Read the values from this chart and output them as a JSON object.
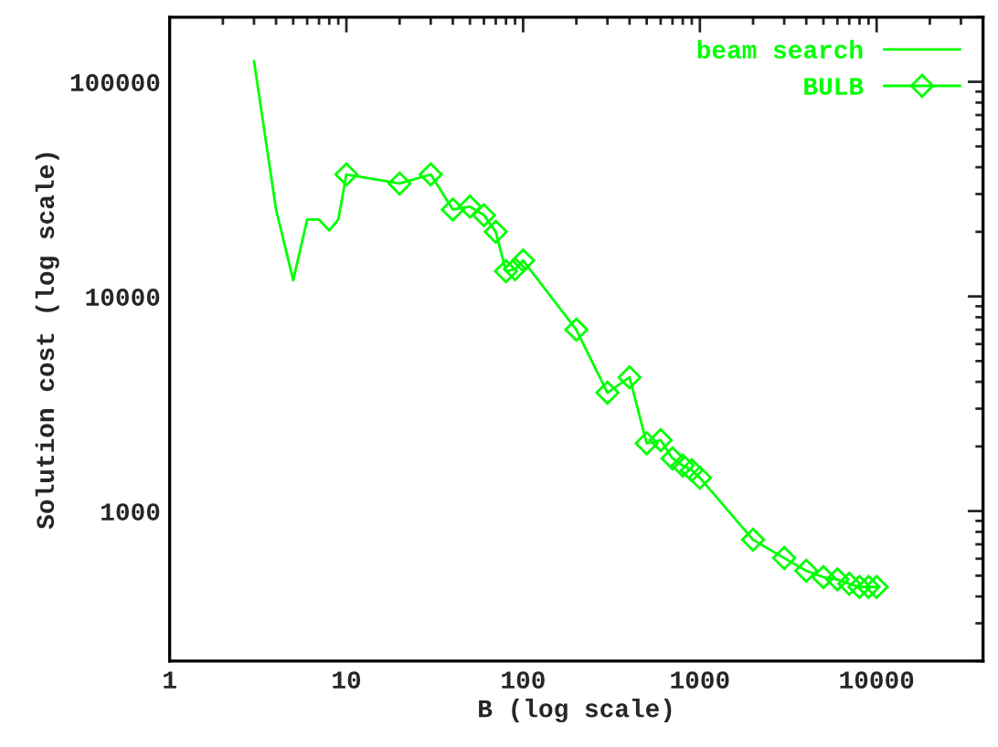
{
  "chart_data": {
    "type": "line",
    "xlabel": "B (log scale)",
    "ylabel": "Solution cost (log scale)",
    "log": "xy",
    "xlim": [
      1,
      40000
    ],
    "ylim": [
      200,
      200000
    ],
    "xticks": [
      1,
      10,
      100,
      1000,
      10000
    ],
    "yticks": [
      1000,
      10000,
      100000
    ],
    "grid": false,
    "legend": "top right",
    "series": [
      {
        "name": "beam search",
        "color": "#00ff00",
        "marker": "none",
        "x": [
          3,
          4,
          5,
          6,
          7,
          8,
          9,
          10
        ],
        "values": [
          125000,
          25400,
          11900,
          22800,
          22800,
          20300,
          22800,
          37000
        ]
      },
      {
        "name": "BULB",
        "color": "#00ff00",
        "marker": "diamond",
        "x": [
          10,
          20,
          30,
          40,
          50,
          60,
          70,
          80,
          90,
          100,
          200,
          300,
          400,
          500,
          600,
          700,
          800,
          900,
          1000,
          2000,
          3000,
          4000,
          5000,
          6000,
          7000,
          8000,
          9000,
          10000
        ],
        "values": [
          37000,
          33600,
          37000,
          25400,
          26200,
          23900,
          20000,
          13100,
          13400,
          14700,
          7000,
          3560,
          4200,
          2070,
          2140,
          1760,
          1630,
          1550,
          1430,
          735,
          604,
          527,
          492,
          480,
          458,
          443,
          443,
          443
        ]
      }
    ]
  }
}
